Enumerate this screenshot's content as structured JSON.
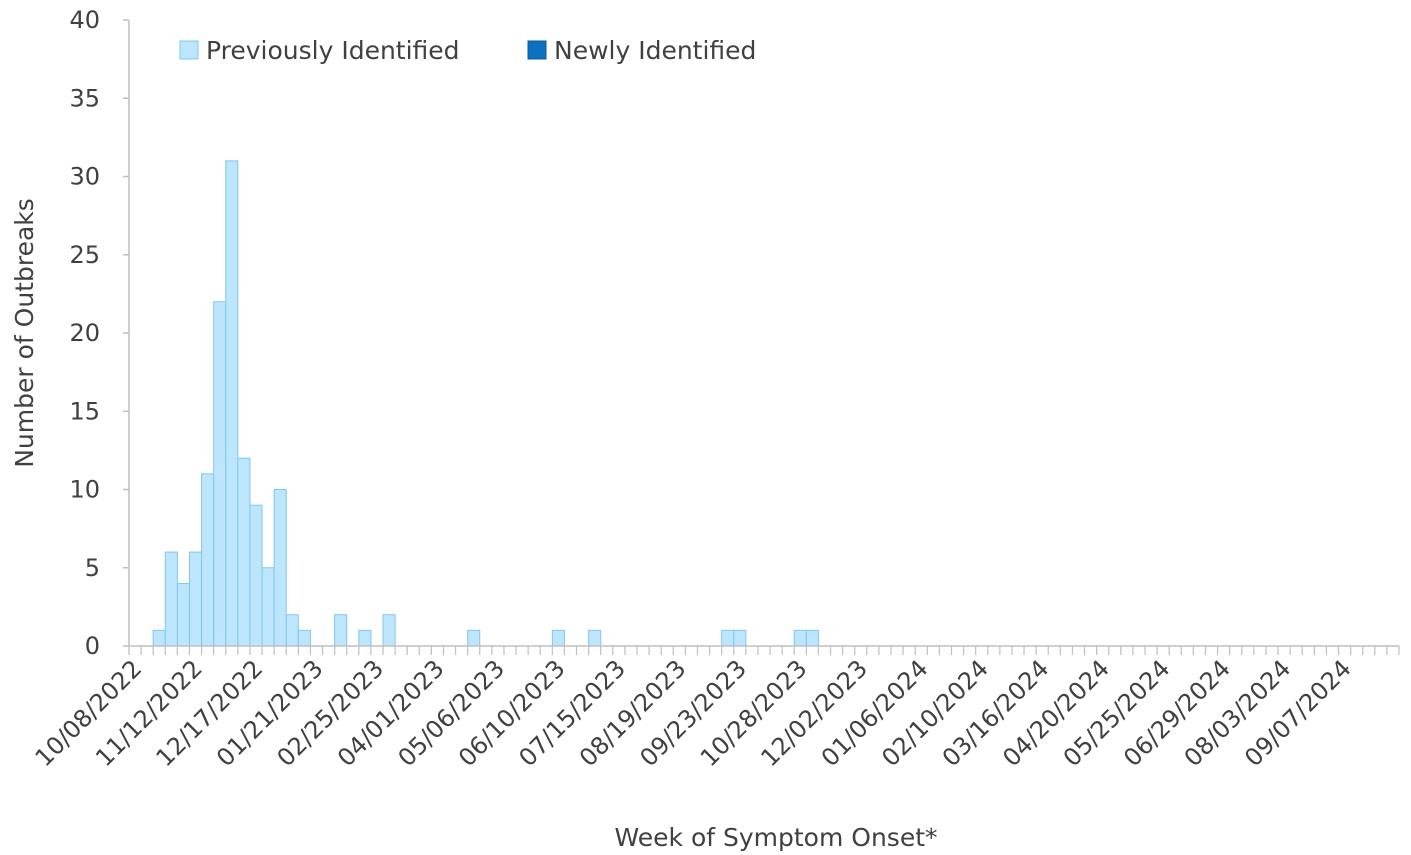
{
  "chart_data": {
    "type": "bar",
    "stacked": true,
    "title": "",
    "xlabel": "Week of Symptom Onset*",
    "ylabel": "Number of Outbreaks",
    "ylim": [
      0,
      40
    ],
    "yticks": [
      0,
      5,
      10,
      15,
      20,
      25,
      30,
      35,
      40
    ],
    "grid": false,
    "legend_position": "top-left",
    "x_start_week": "10/08/2022",
    "x_tick_labels": [
      "10/08/2022",
      "11/12/2022",
      "12/17/2022",
      "01/21/2023",
      "02/25/2023",
      "04/01/2023",
      "05/06/2023",
      "06/10/2023",
      "07/15/2023",
      "08/19/2023",
      "09/23/2023",
      "10/28/2023",
      "12/02/2023",
      "01/06/2024",
      "02/10/2024",
      "03/16/2024",
      "04/20/2024",
      "05/25/2024",
      "06/29/2024",
      "08/03/2024",
      "09/07/2024"
    ],
    "x_tick_every": 5,
    "week_count": 105,
    "series": [
      {
        "name": "Previously Identified",
        "color": "#bde5fc",
        "edge": "#7ec8f2",
        "values": [
          0,
          0,
          1,
          6,
          4,
          6,
          11,
          22,
          31,
          12,
          9,
          5,
          10,
          2,
          1,
          0,
          0,
          2,
          0,
          1,
          0,
          2,
          0,
          0,
          0,
          0,
          0,
          0,
          1,
          0,
          0,
          0,
          0,
          0,
          0,
          1,
          0,
          0,
          1,
          0,
          0,
          0,
          0,
          0,
          0,
          0,
          0,
          0,
          0,
          1,
          1,
          0,
          0,
          0,
          0,
          1,
          1,
          0,
          0,
          0,
          0,
          0,
          0,
          0,
          0,
          0,
          0,
          0,
          0,
          0,
          0,
          0,
          0,
          0,
          0,
          0,
          0,
          0,
          0,
          0,
          0,
          0,
          0,
          0,
          0,
          0,
          0,
          0,
          0,
          0,
          0,
          0,
          0,
          0,
          0,
          0,
          0,
          0,
          0,
          0,
          0,
          0,
          0,
          0,
          0
        ]
      },
      {
        "name": "Newly Identified",
        "color": "#0b72bf",
        "edge": "#0b5a99",
        "values": [
          0,
          0,
          0,
          0,
          0,
          0,
          0,
          0,
          0,
          0,
          0,
          0,
          0,
          0,
          0,
          0,
          0,
          0,
          0,
          0,
          0,
          0,
          0,
          0,
          0,
          0,
          0,
          0,
          0,
          0,
          0,
          0,
          0,
          0,
          0,
          0,
          0,
          0,
          0,
          0,
          0,
          0,
          0,
          0,
          0,
          0,
          0,
          0,
          0,
          0,
          0,
          0,
          0,
          0,
          0,
          0,
          0,
          0,
          0,
          0,
          0,
          0,
          0,
          0,
          0,
          0,
          0,
          0,
          0,
          0,
          0,
          0,
          0,
          0,
          0,
          0,
          0,
          0,
          0,
          0,
          0,
          0,
          0,
          0,
          0,
          0,
          0,
          0,
          0,
          0,
          0,
          0,
          0,
          0,
          0,
          0,
          0,
          0,
          0,
          0,
          0,
          0,
          0,
          0,
          0
        ]
      }
    ],
    "axis_color": "#bfbfbf",
    "text_color": "#404040"
  }
}
